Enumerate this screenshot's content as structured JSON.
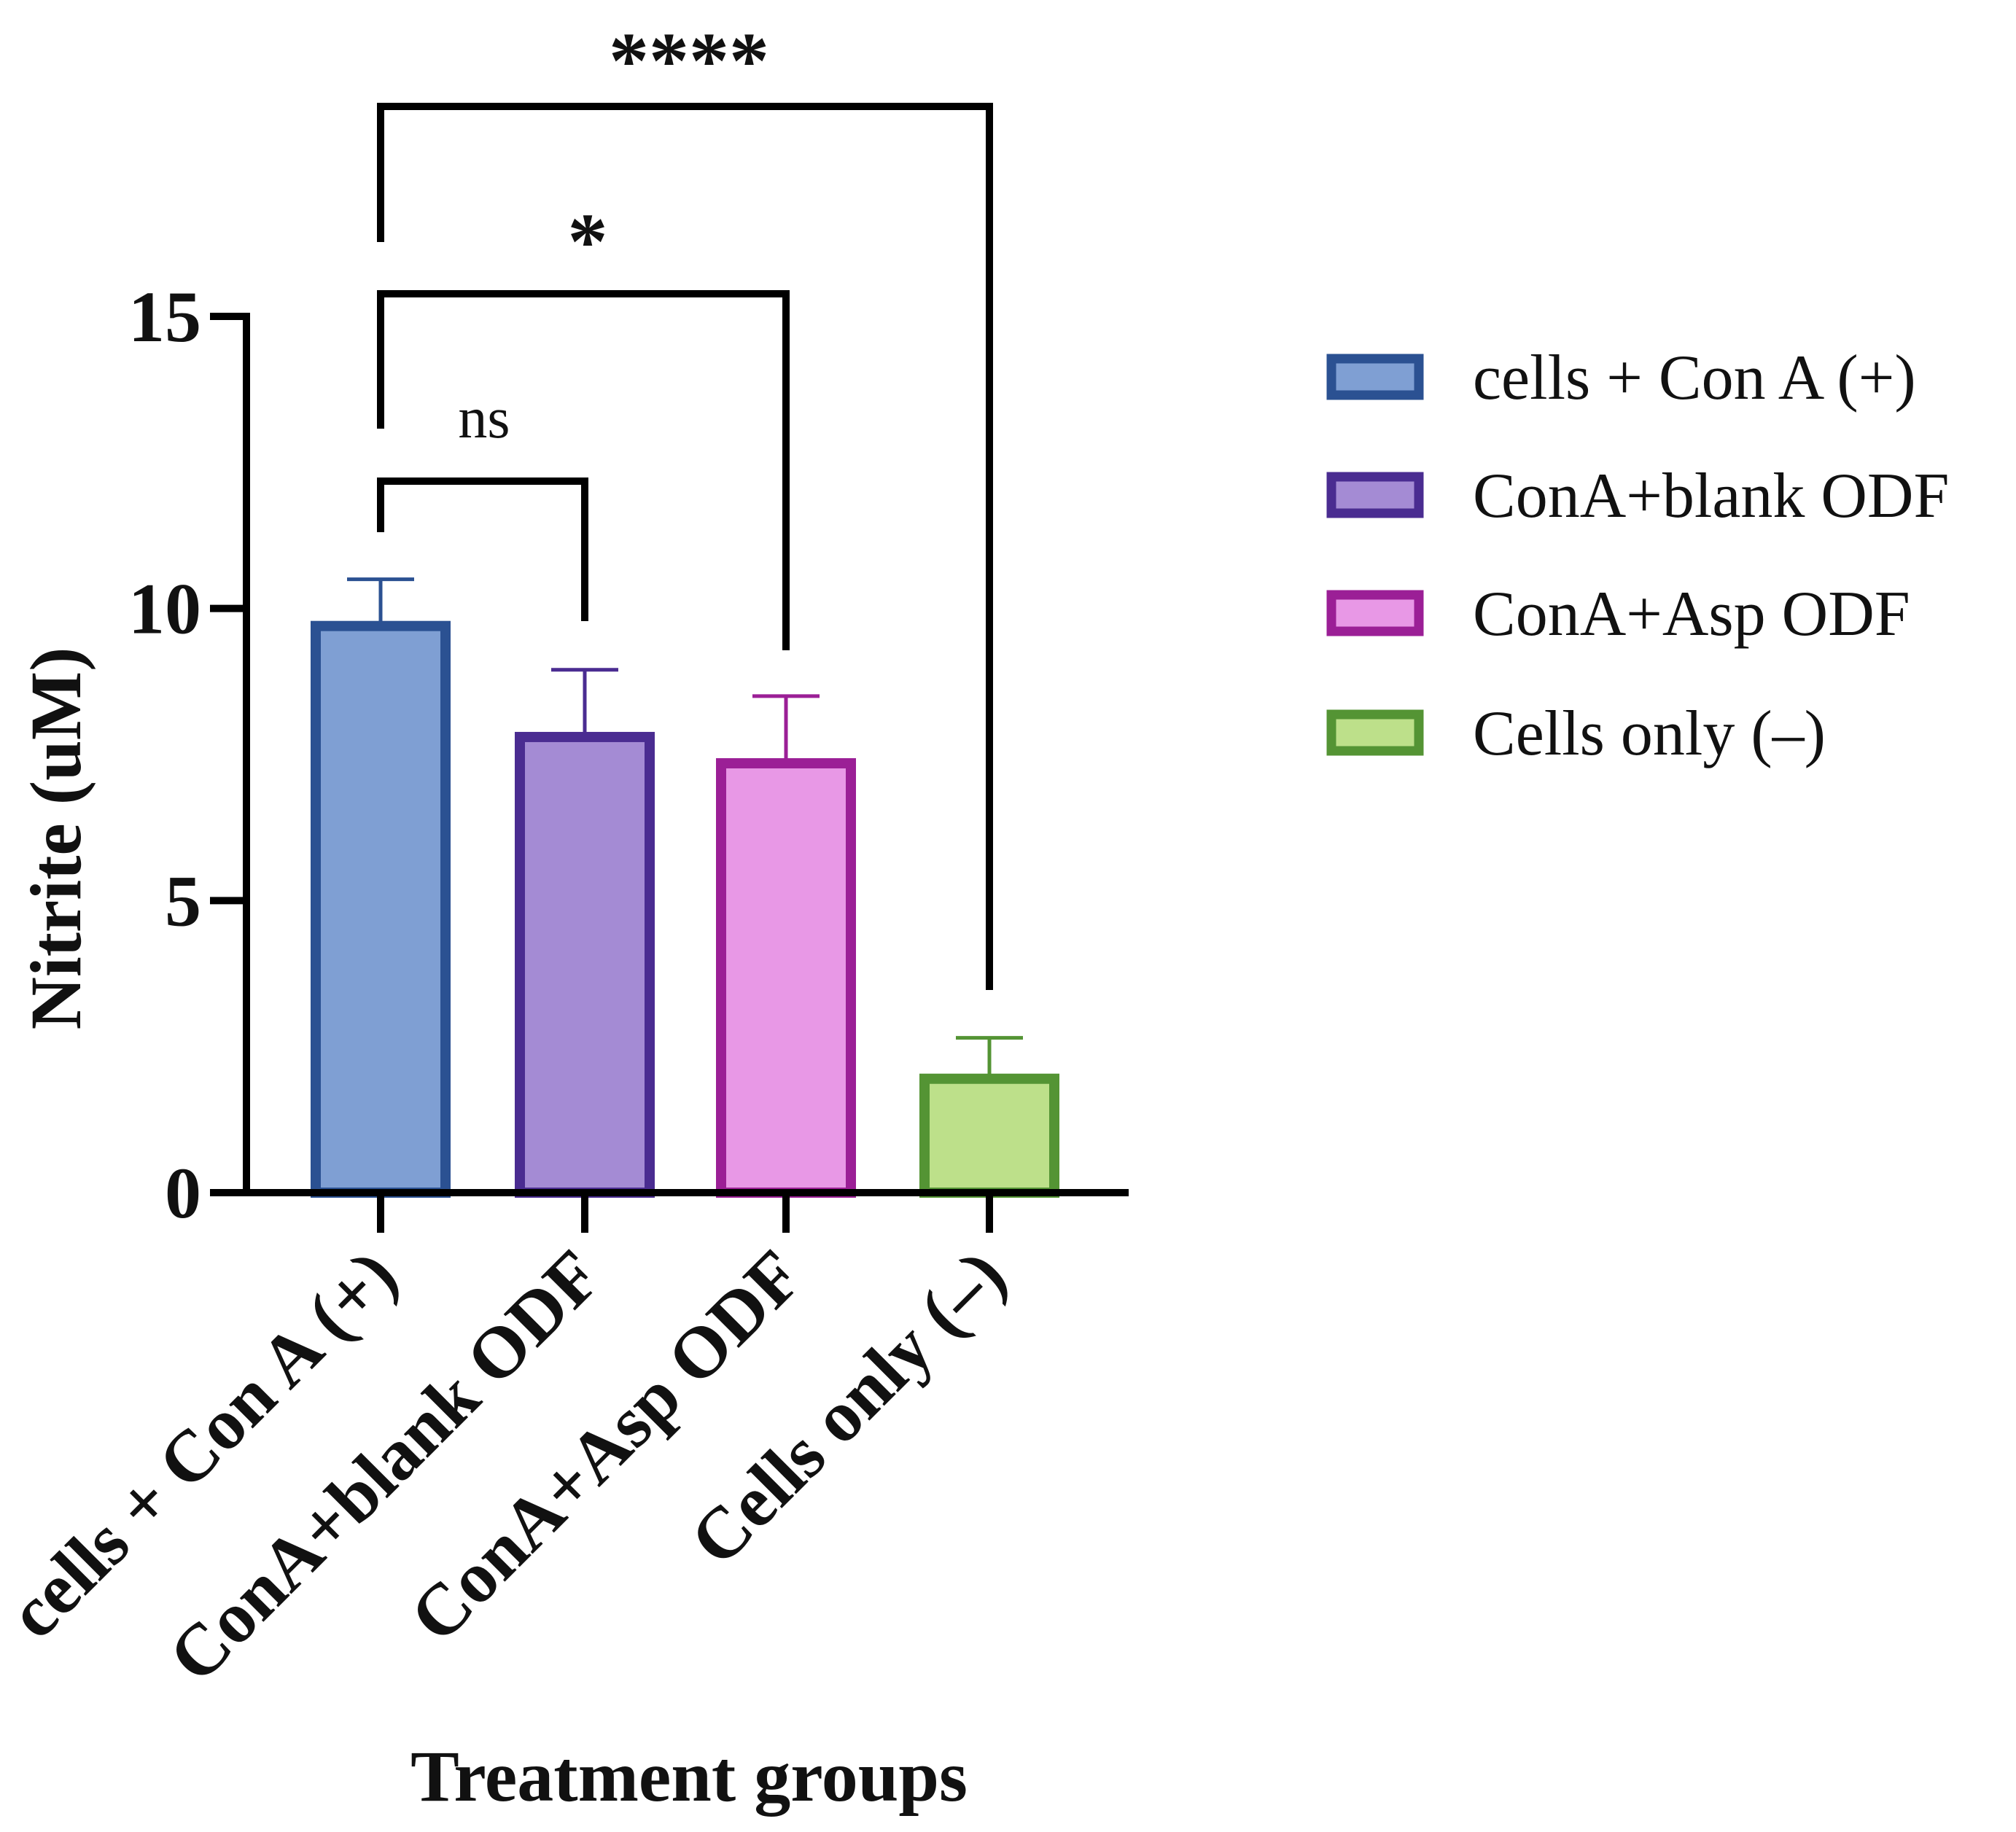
{
  "chart_data": {
    "type": "bar",
    "title": "",
    "xlabel": "Treatment groups",
    "ylabel": "Nitrite (uM)",
    "ylim": [
      0,
      15
    ],
    "yticks": [
      0,
      5,
      10,
      15
    ],
    "categories": [
      "cells + Con A (+)",
      "ConA+blank ODF",
      "ConA+Asp ODF",
      "Cells only (–)"
    ],
    "values": [
      9.7,
      7.8,
      7.35,
      1.95
    ],
    "error_upper": [
      10.5,
      8.95,
      8.5,
      2.65
    ],
    "colors": {
      "fill": [
        "#7f9fd3",
        "#a48bd4",
        "#e898e6",
        "#bde08a"
      ],
      "stroke": [
        "#2b5192",
        "#4a2c91",
        "#9b1f96",
        "#549434"
      ]
    },
    "legend": {
      "position": "right",
      "entries": [
        "cells + Con A (+)",
        "ConA+blank ODF",
        "ConA+Asp ODF",
        "Cells only (–)"
      ]
    },
    "significance": [
      {
        "from": 0,
        "to": 1,
        "label": "ns",
        "level": 12.2
      },
      {
        "from": 0,
        "to": 2,
        "label": "*",
        "level": 15.4
      },
      {
        "from": 0,
        "to": 3,
        "label": "****",
        "level": 18.7
      }
    ]
  }
}
